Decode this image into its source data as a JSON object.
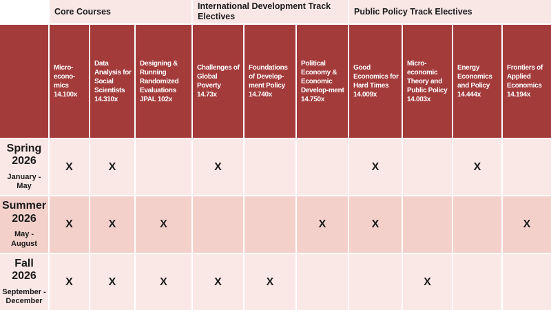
{
  "track_groups": [
    {
      "label": "Core Courses"
    },
    {
      "label": "International Development Track Electives"
    },
    {
      "label": "Public Policy Track Electives"
    }
  ],
  "courses": [
    {
      "title": "Micro-econo-mics",
      "code": "14.100x"
    },
    {
      "title": "Data Analysis for Social Scientists",
      "code": "14.310x"
    },
    {
      "title": "Designing & Running Randomized Evaluations",
      "code": "JPAL 102x"
    },
    {
      "title": "Challenges of Global Poverty",
      "code": "14.73x"
    },
    {
      "title": "Foundations of Develop-ment Policy",
      "code": "14.740x"
    },
    {
      "title": "Political Economy & Economic Develop-ment",
      "code": "14.750x"
    },
    {
      "title": "Good Economics for Hard Times",
      "code": "14.009x"
    },
    {
      "title": "Micro-economic Theory and Public Policy",
      "code": "14.003x"
    },
    {
      "title": "Energy Economics and Policy",
      "code": "14.444x"
    },
    {
      "title": "Frontiers of Applied Economics",
      "code": "14.194x"
    }
  ],
  "rows": [
    {
      "term": "Spring 2026",
      "months": "January - May",
      "marks": [
        "X",
        "X",
        "",
        "X",
        "",
        "",
        "X",
        "",
        "X",
        ""
      ]
    },
    {
      "term": "Summer 2026",
      "months": "May - August",
      "marks": [
        "X",
        "X",
        "X",
        "",
        "",
        "X",
        "X",
        "",
        "",
        "X"
      ]
    },
    {
      "term": "Fall 2026",
      "months": "September - December",
      "marks": [
        "X",
        "X",
        "X",
        "X",
        "X",
        "",
        "",
        "X",
        "",
        ""
      ]
    }
  ],
  "colors": {
    "header_red": "#A43B3B",
    "row_light": "#FAE8E6",
    "row_dark": "#F3D1CA",
    "band_pink": "#F9E7E5",
    "mark_black": "#1A1A1A",
    "header_text": "#FFFFFF"
  }
}
